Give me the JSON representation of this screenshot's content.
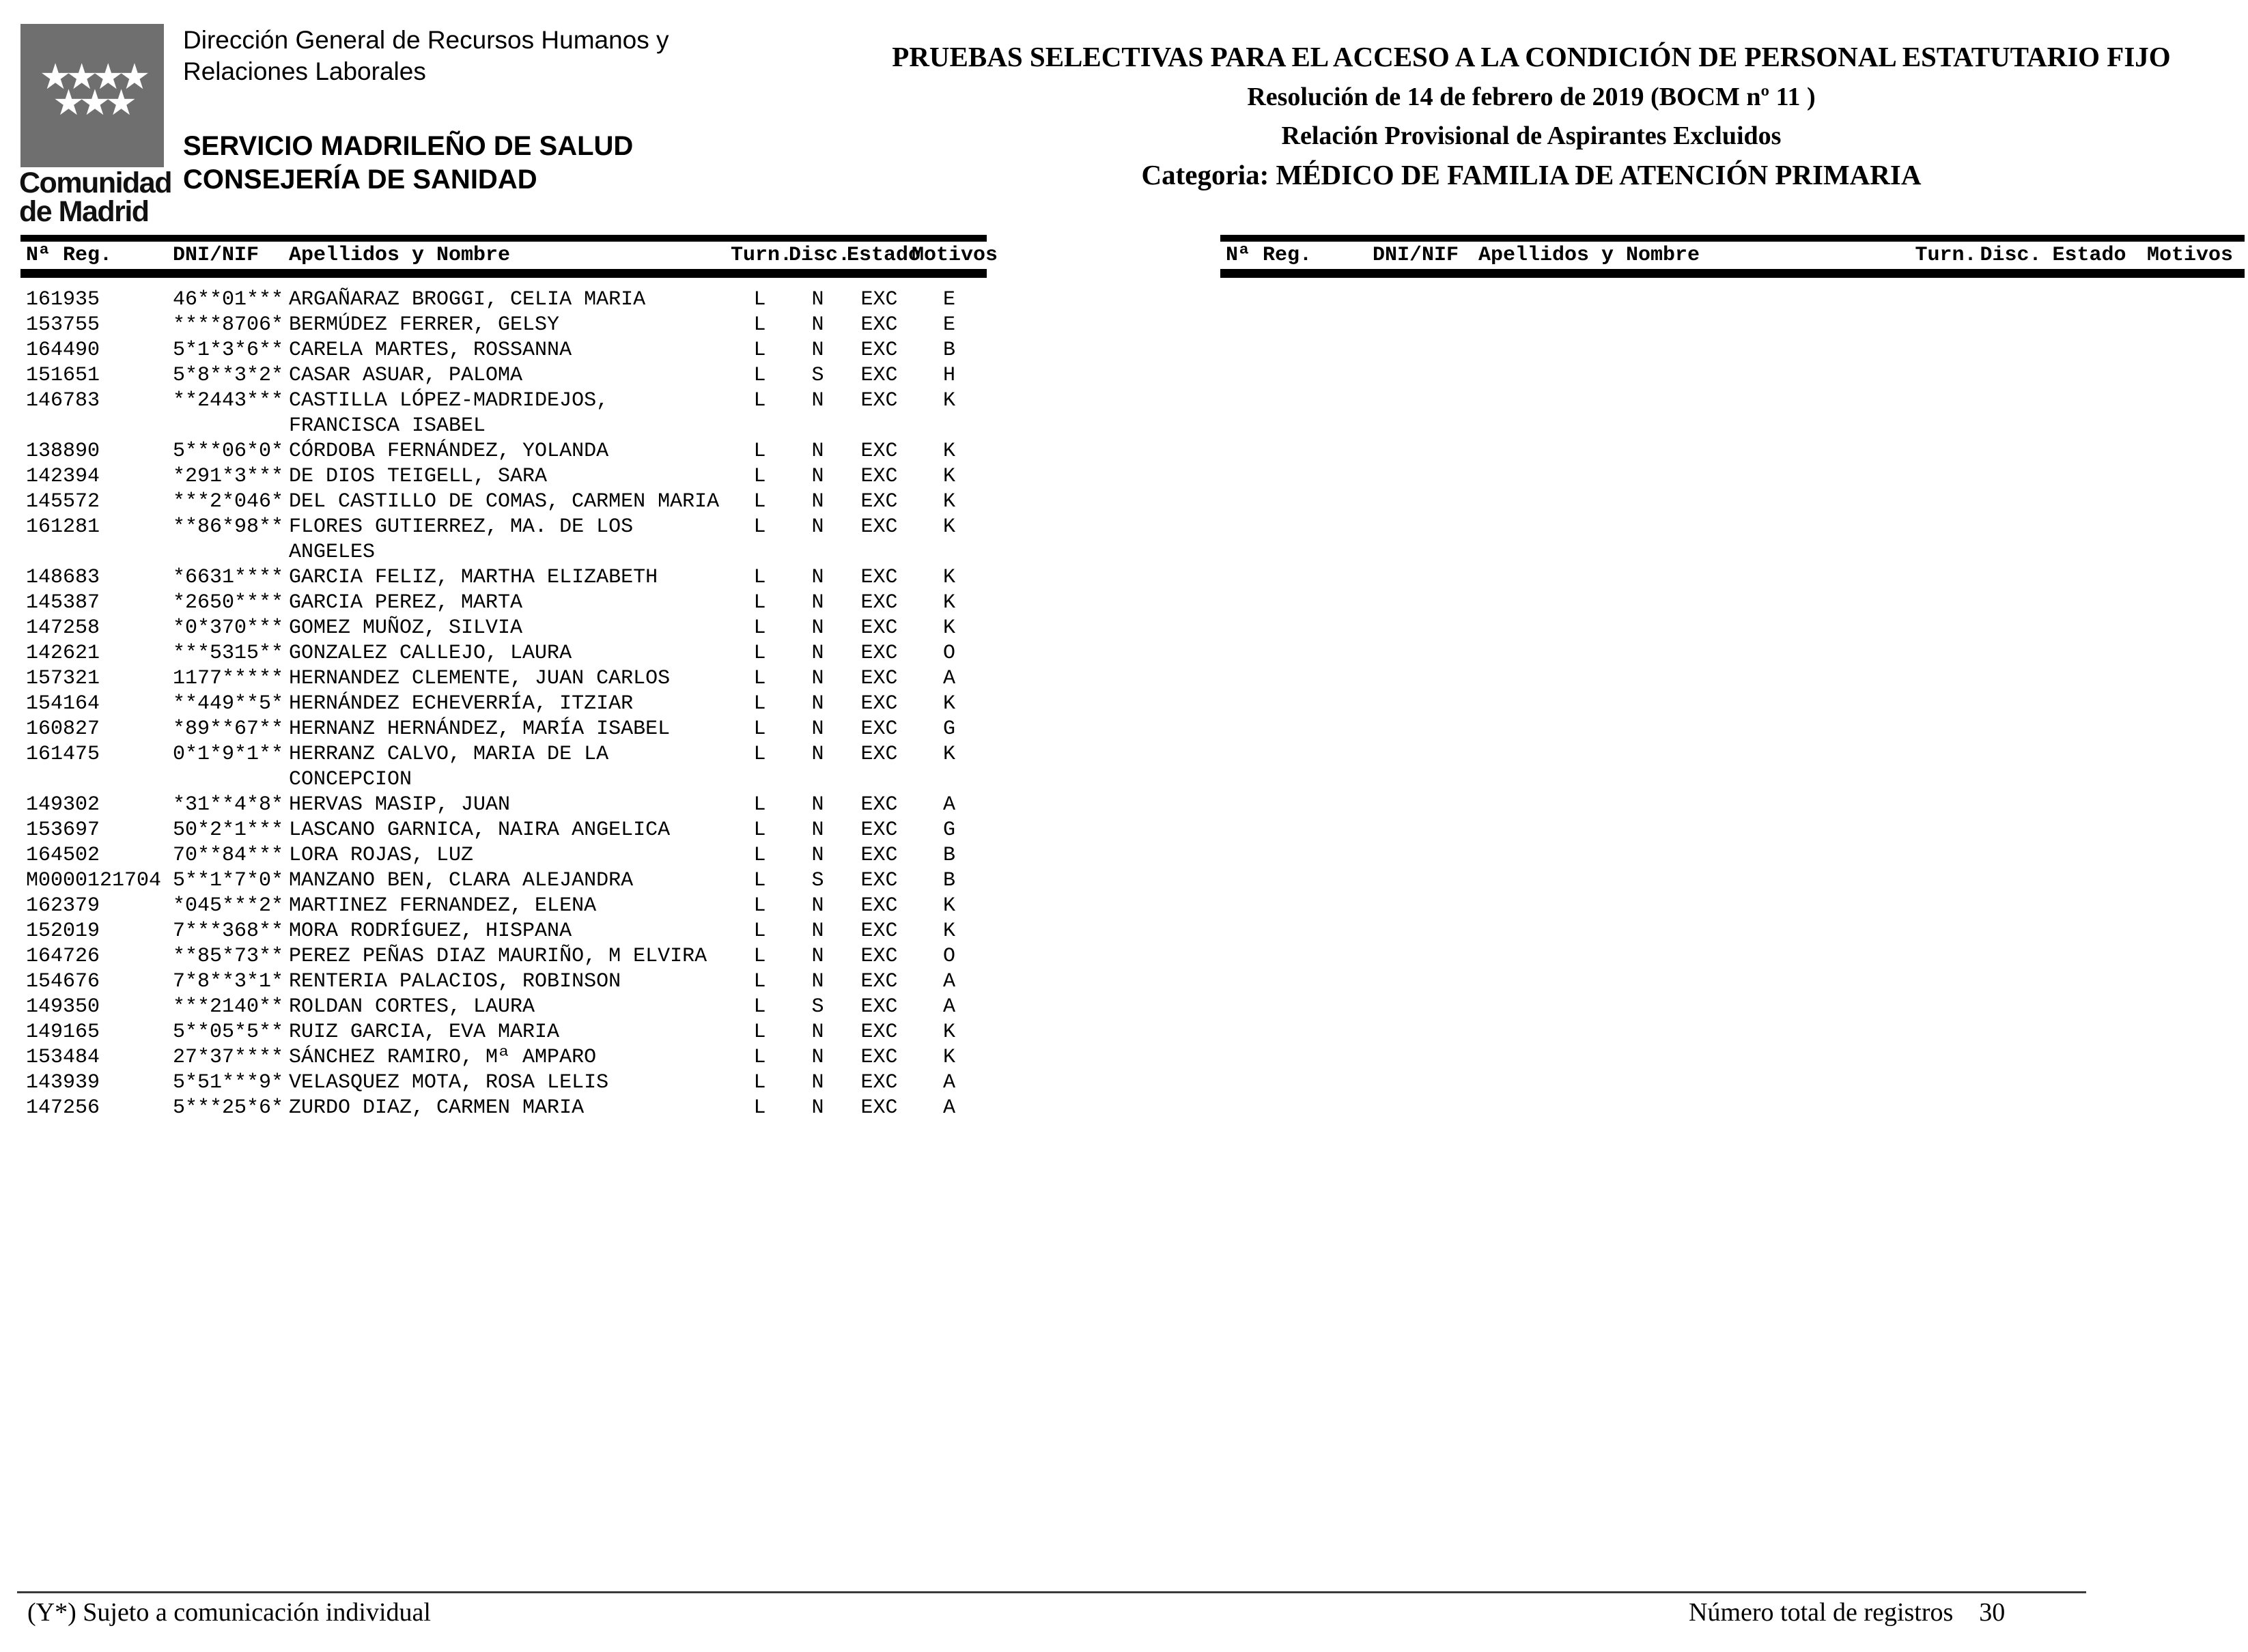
{
  "logo": {
    "stars_top": "★★★★",
    "stars_bottom": "★★★",
    "word_line1": "Comunidad",
    "word_line2": "de Madrid",
    "box_color": "#6f6f6f"
  },
  "org": {
    "direccion_line1": "Dirección General de Recursos Humanos y",
    "direccion_line2": "Relaciones Laborales",
    "servicio": "SERVICIO MADRILEÑO DE SALUD",
    "consejeria": "CONSEJERÍA DE SANIDAD"
  },
  "headline": {
    "title": "PRUEBAS SELECTIVAS PARA EL ACCESO A LA CONDICIÓN DE PERSONAL ESTATUTARIO FIJO",
    "resolution": "Resolución de 14 de febrero de 2019 (BOCM nº 11 )",
    "subtitle": "Relación Provisional de Aspirantes Excluidos",
    "category": "Categoria: MÉDICO DE FAMILIA DE ATENCIÓN PRIMARIA"
  },
  "table": {
    "headers": {
      "reg": "Nª Reg.",
      "dni": "DNI/NIF",
      "name": "Apellidos y Nombre",
      "turn": "Turn.",
      "disc": "Disc.",
      "estado": "Estado",
      "motivos": "Motivos"
    },
    "rows": [
      {
        "reg": "161935",
        "dni": "46**01***",
        "name": "ARGAÑARAZ BROGGI, CELIA MARIA",
        "turn": "L",
        "disc": "N",
        "estado": "EXC",
        "motivo": "E"
      },
      {
        "reg": "153755",
        "dni": "****8706*",
        "name": "BERMÚDEZ FERRER, GELSY",
        "turn": "L",
        "disc": "N",
        "estado": "EXC",
        "motivo": "E"
      },
      {
        "reg": "164490",
        "dni": "5*1*3*6**",
        "name": "CARELA MARTES, ROSSANNA",
        "turn": "L",
        "disc": "N",
        "estado": "EXC",
        "motivo": "B"
      },
      {
        "reg": "151651",
        "dni": "5*8**3*2*",
        "name": "CASAR ASUAR, PALOMA",
        "turn": "L",
        "disc": "S",
        "estado": "EXC",
        "motivo": "H"
      },
      {
        "reg": "146783",
        "dni": "**2443***",
        "name": "CASTILLA LÓPEZ-MADRIDEJOS, FRANCISCA ISABEL",
        "turn": "L",
        "disc": "N",
        "estado": "EXC",
        "motivo": "K"
      },
      {
        "reg": "138890",
        "dni": "5***06*0*",
        "name": "CÓRDOBA FERNÁNDEZ, YOLANDA",
        "turn": "L",
        "disc": "N",
        "estado": "EXC",
        "motivo": "K"
      },
      {
        "reg": "142394",
        "dni": "*291*3***",
        "name": "DE DIOS TEIGELL, SARA",
        "turn": "L",
        "disc": "N",
        "estado": "EXC",
        "motivo": "K"
      },
      {
        "reg": "145572",
        "dni": "***2*046*",
        "name": "DEL CASTILLO DE COMAS, CARMEN MARIA",
        "turn": "L",
        "disc": "N",
        "estado": "EXC",
        "motivo": "K"
      },
      {
        "reg": "161281",
        "dni": "**86*98**",
        "name": "FLORES GUTIERREZ, MA. DE LOS ANGELES",
        "turn": "L",
        "disc": "N",
        "estado": "EXC",
        "motivo": "K"
      },
      {
        "reg": "148683",
        "dni": "*6631****",
        "name": "GARCIA FELIZ, MARTHA ELIZABETH",
        "turn": "L",
        "disc": "N",
        "estado": "EXC",
        "motivo": "K"
      },
      {
        "reg": "145387",
        "dni": "*2650****",
        "name": "GARCIA PEREZ, MARTA",
        "turn": "L",
        "disc": "N",
        "estado": "EXC",
        "motivo": "K"
      },
      {
        "reg": "147258",
        "dni": "*0*370***",
        "name": "GOMEZ MUÑOZ, SILVIA",
        "turn": "L",
        "disc": "N",
        "estado": "EXC",
        "motivo": "K"
      },
      {
        "reg": "142621",
        "dni": "***5315**",
        "name": "GONZALEZ CALLEJO, LAURA",
        "turn": "L",
        "disc": "N",
        "estado": "EXC",
        "motivo": "O"
      },
      {
        "reg": "157321",
        "dni": "1177*****",
        "name": "HERNANDEZ CLEMENTE, JUAN CARLOS",
        "turn": "L",
        "disc": "N",
        "estado": "EXC",
        "motivo": "A"
      },
      {
        "reg": "154164",
        "dni": "**449**5*",
        "name": "HERNÁNDEZ ECHEVERRÍA, ITZIAR",
        "turn": "L",
        "disc": "N",
        "estado": "EXC",
        "motivo": "K"
      },
      {
        "reg": "160827",
        "dni": "*89**67**",
        "name": "HERNANZ HERNÁNDEZ, MARÍA ISABEL",
        "turn": "L",
        "disc": "N",
        "estado": "EXC",
        "motivo": "G"
      },
      {
        "reg": "161475",
        "dni": "0*1*9*1**",
        "name": "HERRANZ CALVO, MARIA DE LA CONCEPCION",
        "turn": "L",
        "disc": "N",
        "estado": "EXC",
        "motivo": "K"
      },
      {
        "reg": "149302",
        "dni": "*31**4*8*",
        "name": "HERVAS MASIP, JUAN",
        "turn": "L",
        "disc": "N",
        "estado": "EXC",
        "motivo": "A"
      },
      {
        "reg": "153697",
        "dni": "50*2*1***",
        "name": "LASCANO GARNICA, NAIRA ANGELICA",
        "turn": "L",
        "disc": "N",
        "estado": "EXC",
        "motivo": "G"
      },
      {
        "reg": "164502",
        "dni": "70**84***",
        "name": "LORA ROJAS, LUZ",
        "turn": "L",
        "disc": "N",
        "estado": "EXC",
        "motivo": "B"
      },
      {
        "reg": "M0000121704",
        "dni": "5**1*7*0*",
        "name": "MANZANO BEN, CLARA ALEJANDRA",
        "turn": "L",
        "disc": "S",
        "estado": "EXC",
        "motivo": "B"
      },
      {
        "reg": "162379",
        "dni": "*045***2*",
        "name": "MARTINEZ FERNANDEZ, ELENA",
        "turn": "L",
        "disc": "N",
        "estado": "EXC",
        "motivo": "K"
      },
      {
        "reg": "152019",
        "dni": "7***368**",
        "name": "MORA RODRÍGUEZ, HISPANA",
        "turn": "L",
        "disc": "N",
        "estado": "EXC",
        "motivo": "K"
      },
      {
        "reg": "164726",
        "dni": "**85*73**",
        "name": "PEREZ PEÑAS DIAZ MAURIÑO, M ELVIRA",
        "turn": "L",
        "disc": "N",
        "estado": "EXC",
        "motivo": "O"
      },
      {
        "reg": "154676",
        "dni": "7*8**3*1*",
        "name": "RENTERIA PALACIOS, ROBINSON",
        "turn": "L",
        "disc": "N",
        "estado": "EXC",
        "motivo": "A"
      },
      {
        "reg": "149350",
        "dni": "***2140**",
        "name": "ROLDAN CORTES, LAURA",
        "turn": "L",
        "disc": "S",
        "estado": "EXC",
        "motivo": "A"
      },
      {
        "reg": "149165",
        "dni": "5**05*5**",
        "name": "RUIZ GARCIA, EVA MARIA",
        "turn": "L",
        "disc": "N",
        "estado": "EXC",
        "motivo": "K"
      },
      {
        "reg": "153484",
        "dni": "27*37****",
        "name": "SÁNCHEZ RAMIRO, Mª AMPARO",
        "turn": "L",
        "disc": "N",
        "estado": "EXC",
        "motivo": "K"
      },
      {
        "reg": "143939",
        "dni": "5*51***9*",
        "name": "VELASQUEZ MOTA, ROSA LELIS",
        "turn": "L",
        "disc": "N",
        "estado": "EXC",
        "motivo": "A"
      },
      {
        "reg": "147256",
        "dni": "5***25*6*",
        "name": "ZURDO DIAZ, CARMEN MARIA",
        "turn": "L",
        "disc": "N",
        "estado": "EXC",
        "motivo": "A"
      }
    ]
  },
  "right_table": {
    "rows": []
  },
  "footer": {
    "note": "(Y*) Sujeto a comunicación individual",
    "total_label": "Número total de registros",
    "total_value": "30"
  }
}
